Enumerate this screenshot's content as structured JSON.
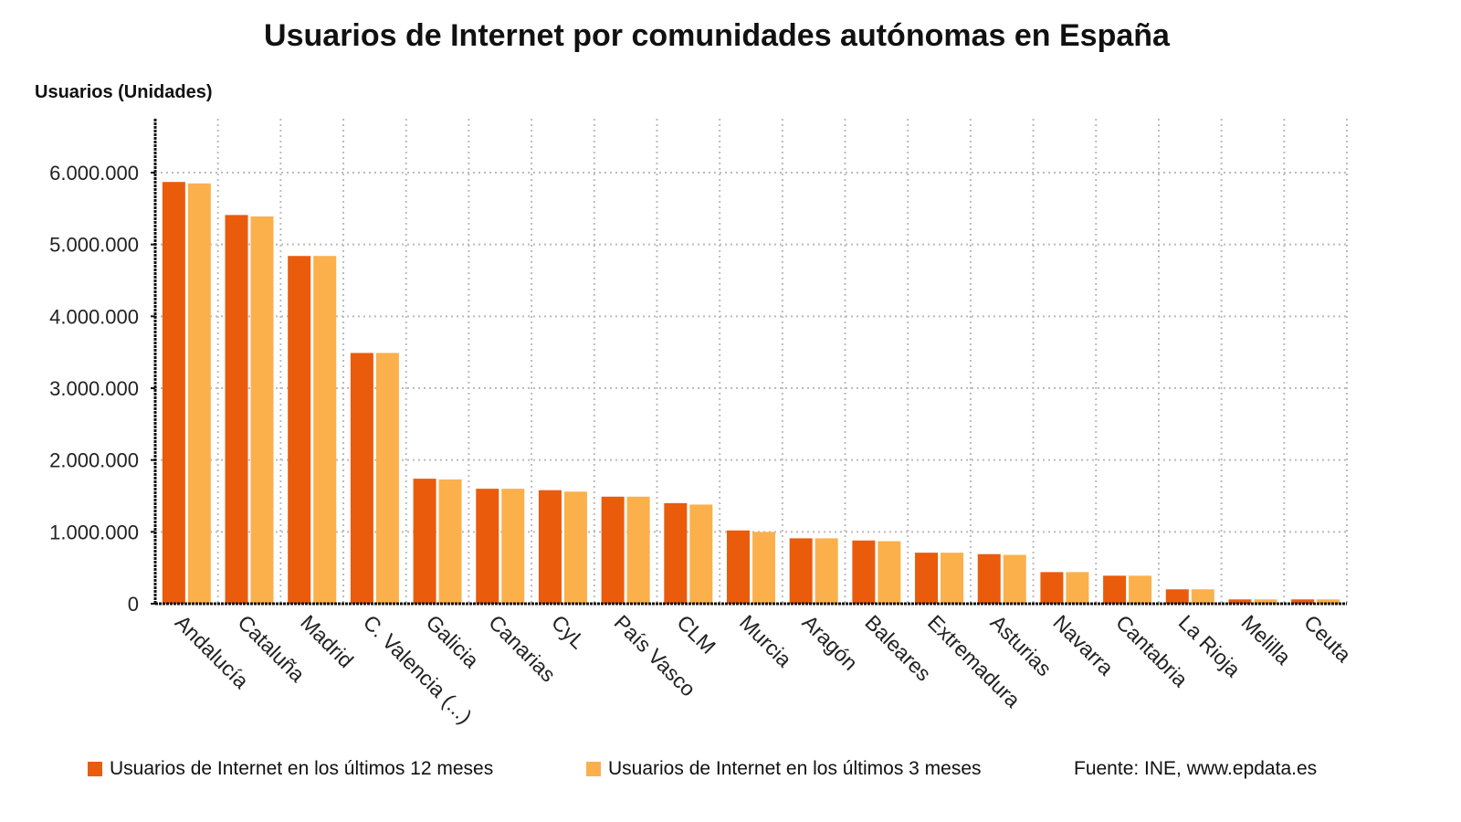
{
  "chart_data": {
    "type": "bar",
    "title": "Usuarios de Internet por comunidades autónomas en España",
    "ylabel": "Usuarios (Unidades)",
    "xlabel": "",
    "ylim": [
      0,
      6700000
    ],
    "yticks": [
      0,
      1000000,
      2000000,
      3000000,
      4000000,
      5000000,
      6000000
    ],
    "ytick_labels": [
      "0",
      "1.000.000",
      "2.000.000",
      "3.000.000",
      "4.000.000",
      "5.000.000",
      "6.000.000"
    ],
    "grid": true,
    "legend_position": "bottom",
    "categories": [
      "Andalucía",
      "Cataluña",
      "Madrid",
      "C. Valencia (...)",
      "Galicia",
      "Canarias",
      "CyL",
      "País Vasco",
      "CLM",
      "Murcia",
      "Aragón",
      "Baleares",
      "Extremadura",
      "Asturias",
      "Navarra",
      "Cantabria",
      "La Rioja",
      "Melilla",
      "Ceuta"
    ],
    "series": [
      {
        "name": "Usuarios de Internet en los últimos 12 meses",
        "color": "#ea5b0c",
        "values": [
          5870000,
          5410000,
          4840000,
          3490000,
          1740000,
          1600000,
          1580000,
          1490000,
          1400000,
          1020000,
          910000,
          880000,
          710000,
          690000,
          440000,
          390000,
          200000,
          60000,
          60000
        ]
      },
      {
        "name": "Usuarios de Internet en los últimos 3 meses",
        "color": "#fbb04c",
        "values": [
          5850000,
          5390000,
          4840000,
          3490000,
          1730000,
          1600000,
          1560000,
          1490000,
          1380000,
          1000000,
          910000,
          870000,
          710000,
          680000,
          440000,
          390000,
          200000,
          60000,
          60000
        ]
      }
    ],
    "source": "Fuente: INE, www.epdata.es"
  }
}
